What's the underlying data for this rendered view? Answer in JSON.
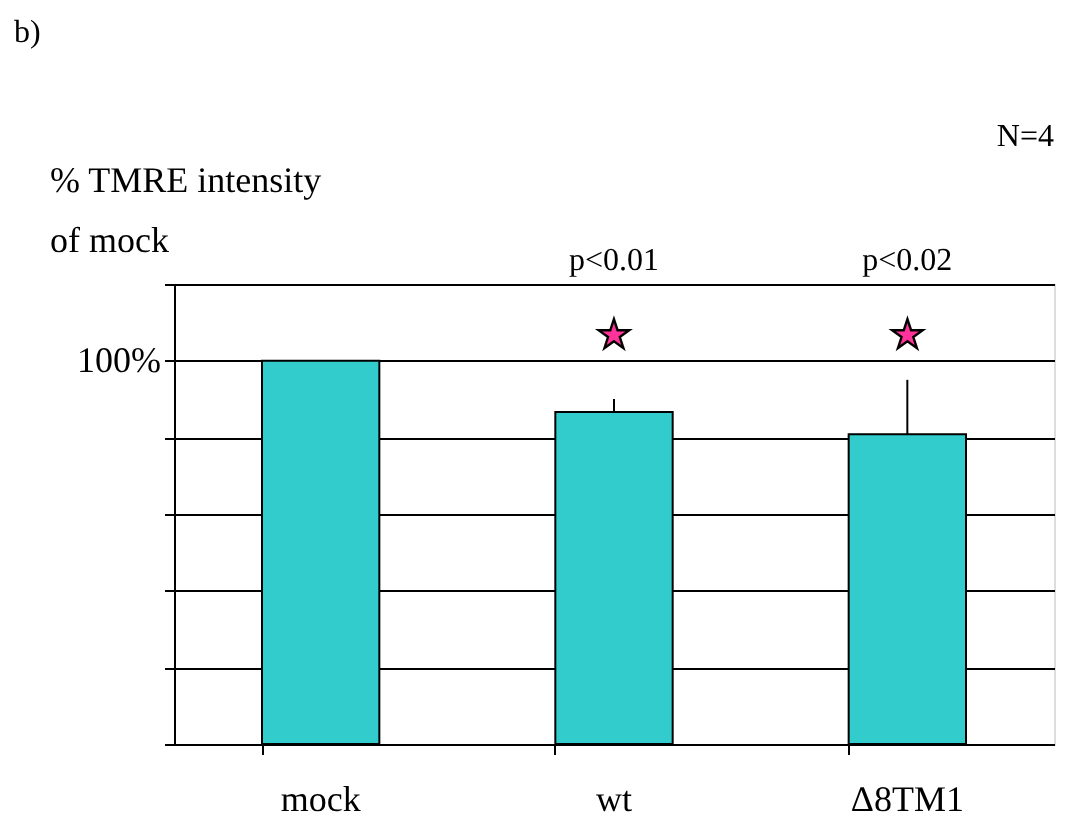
{
  "chart_data": {
    "type": "bar",
    "ylabel": "% TMRE intensity\nof mock",
    "categories": [
      "mock",
      "wt",
      "Δ8TM1"
    ],
    "values": [
      100,
      86.6,
      80.8
    ],
    "errors": [
      null,
      [
        86.6,
        90
      ],
      [
        80.8,
        95
      ]
    ],
    "ylim": [
      0,
      120
    ],
    "yticks": [
      {
        "value": 0,
        "label": null
      },
      {
        "value": 20,
        "label": null
      },
      {
        "value": 40,
        "label": null
      },
      {
        "value": 60,
        "label": null
      },
      {
        "value": 80,
        "label": null
      },
      {
        "value": 100,
        "label": "100%"
      },
      {
        "value": 120,
        "label": null
      }
    ],
    "color": "#33cccc",
    "grid": "y",
    "annotations": [
      "b)",
      "N=4",
      "p<0.01",
      "p<0.02",
      "★",
      "★"
    ]
  }
}
